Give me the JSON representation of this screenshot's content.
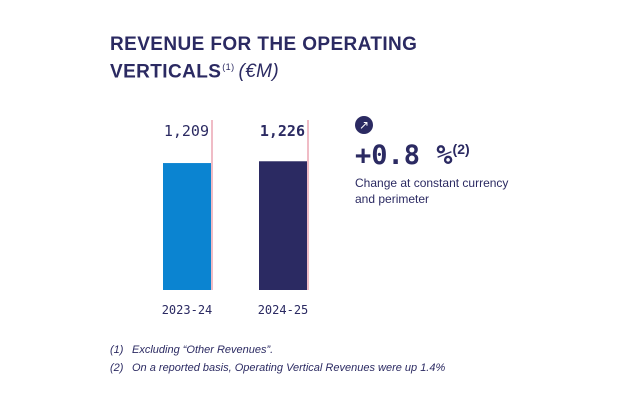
{
  "title": {
    "line1": "REVENUE FOR THE OPERATING",
    "line2": "VERTICALS",
    "note": "(1)",
    "unit": "(€M)"
  },
  "chart_data": {
    "type": "bar",
    "categories": [
      "2023-24",
      "2024-25"
    ],
    "values": [
      1209,
      1226
    ],
    "value_labels": [
      "1,209",
      "1,226"
    ],
    "colors": [
      "#0b84d1",
      "#2b2a62"
    ],
    "accent_line_color": "#e07a8c",
    "ylim": [
      0,
      1300
    ],
    "title": "REVENUE FOR THE OPERATING VERTICALS (€M)",
    "xlabel": "",
    "ylabel": "",
    "grid": false,
    "legend": "none"
  },
  "change": {
    "icon": "arrow-up-right-icon",
    "value": "+0.8 %",
    "note": "(2)",
    "description": "Change at constant currency and perimeter"
  },
  "footnotes": [
    {
      "mark": "(1)",
      "text": "Excluding “Other Revenues”."
    },
    {
      "mark": "(2)",
      "text": "On a reported basis, Operating Vertical Revenues were up 1.4%"
    }
  ]
}
